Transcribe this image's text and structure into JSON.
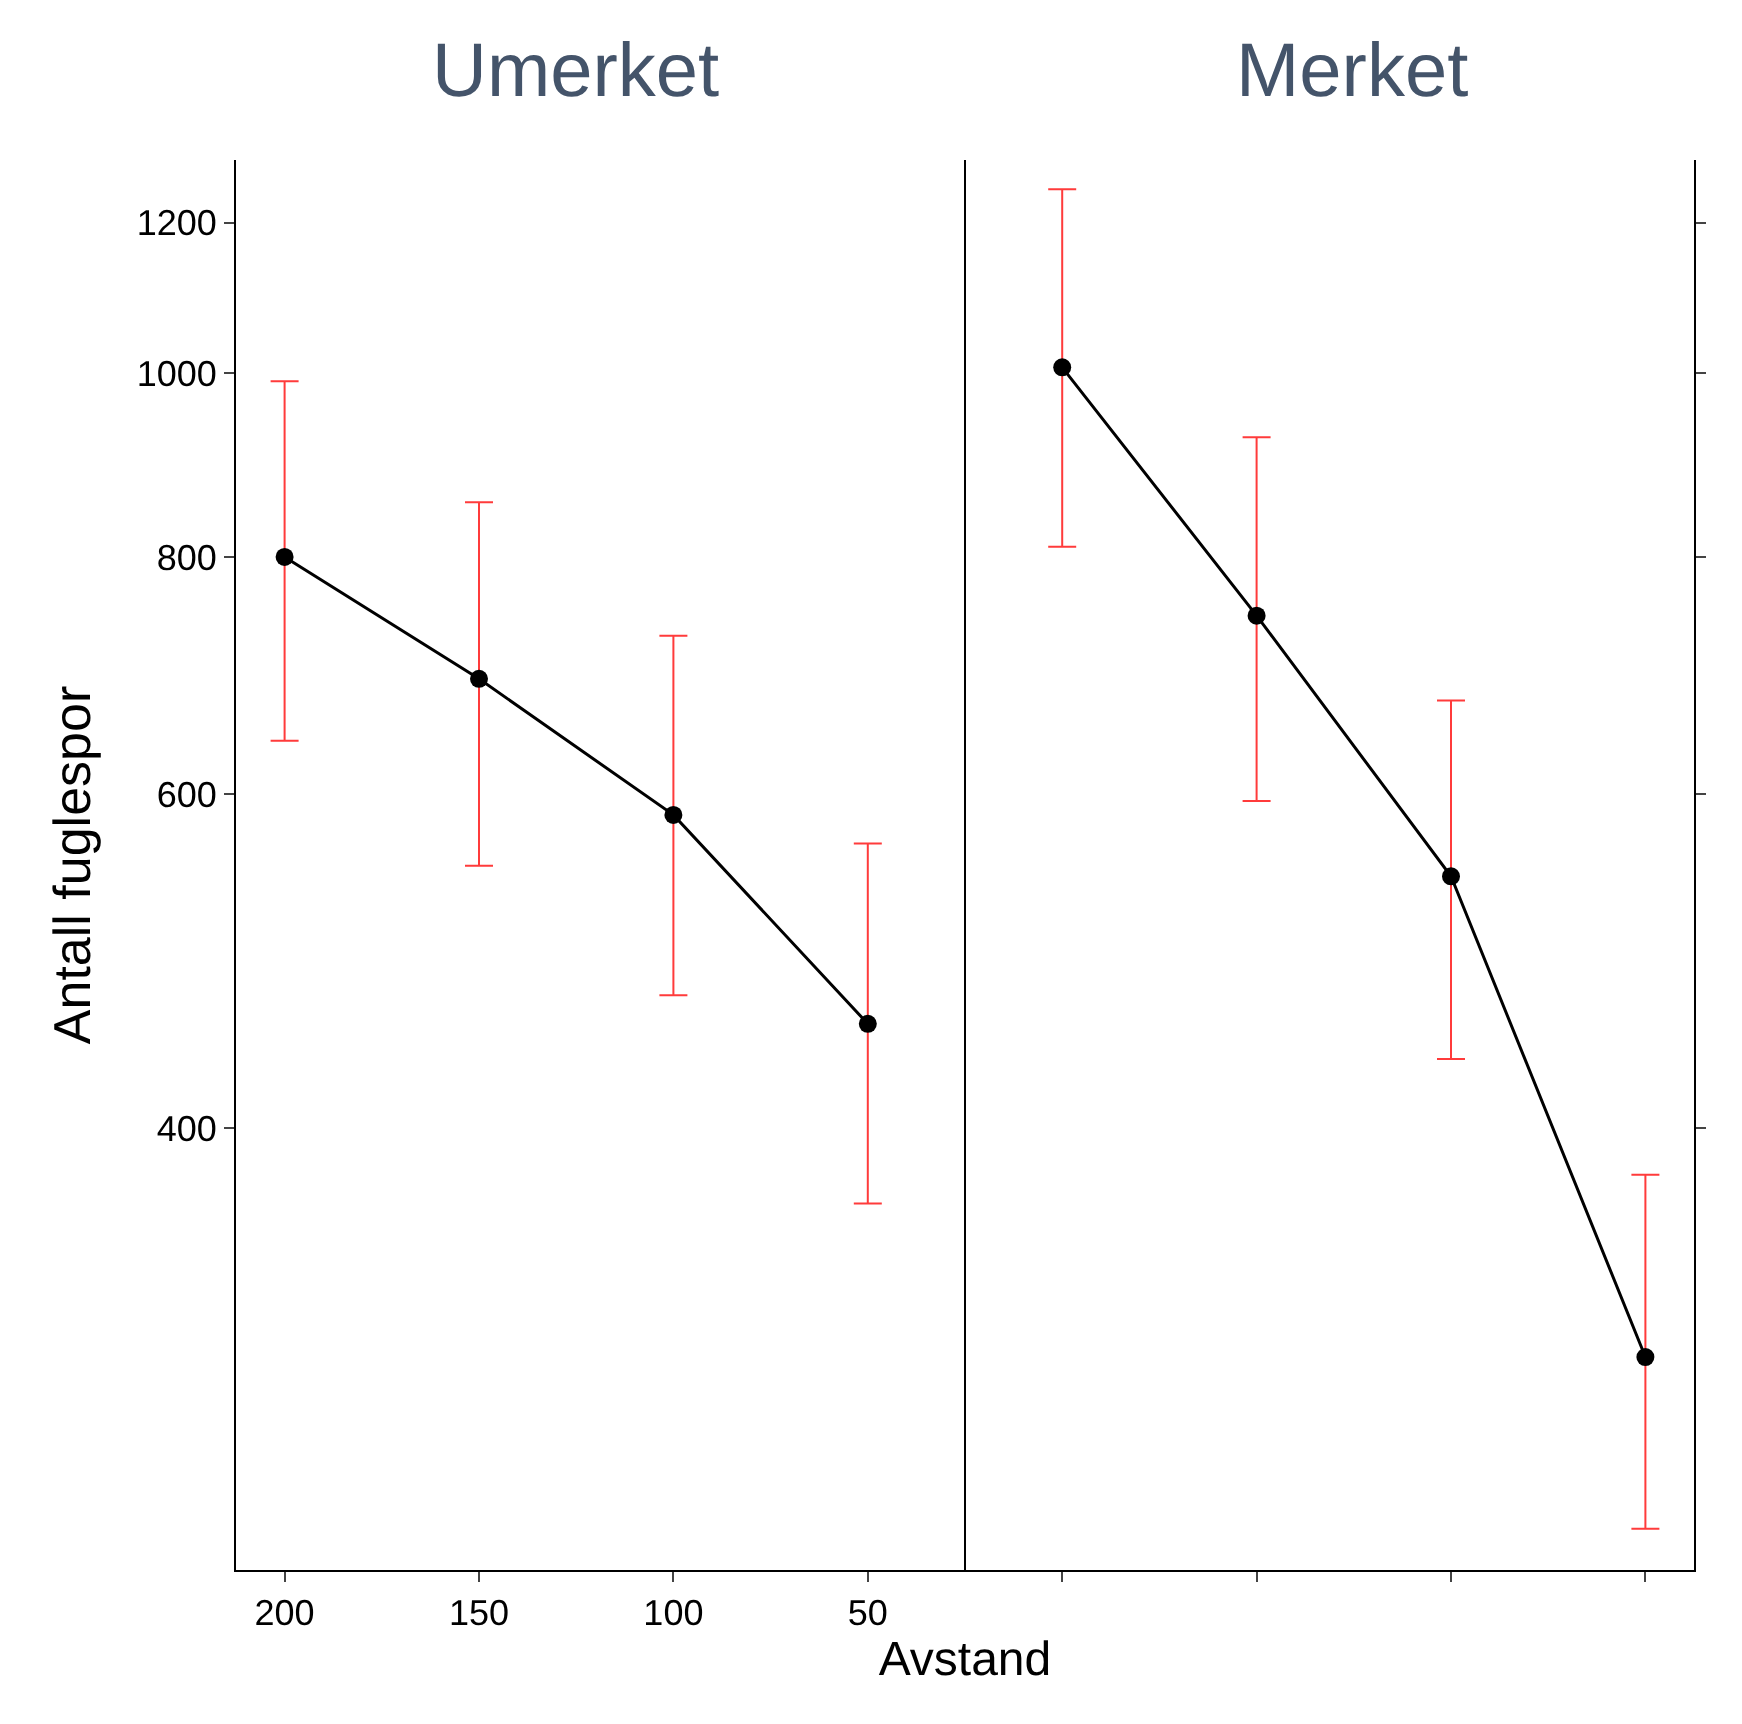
{
  "chart_data": {
    "type": "line",
    "annotations": [
      "Umerket",
      "Merket"
    ],
    "xlabel": "Avstand",
    "ylabel": "Antall fuglespor",
    "categories": [
      "200",
      "150",
      "100",
      "50",
      null,
      null,
      null,
      null
    ],
    "ylim": [
      234,
      1295
    ],
    "yticks": [
      400,
      600,
      800,
      1000,
      1200
    ],
    "log": true,
    "marker": "circle",
    "line_style": "solid",
    "series": [
      {
        "color": "#000000",
        "values": [
          800,
          690,
          585,
          454,
          null,
          null,
          null,
          null
        ],
        "errors": [
          [
            640,
            990
          ],
          [
            550,
            855
          ],
          [
            470,
            727
          ],
          [
            365,
            565
          ],
          null,
          null,
          null,
          null
        ]
      },
      {
        "color": "#000000",
        "values": [
          null,
          null,
          null,
          null,
          1007,
          745,
          543,
          303
        ],
        "errors": [
          null,
          null,
          null,
          null,
          [
            810,
            1250
          ],
          [
            595,
            925
          ],
          [
            435,
            672
          ],
          [
            246,
            378
          ]
        ]
      }
    ]
  }
}
